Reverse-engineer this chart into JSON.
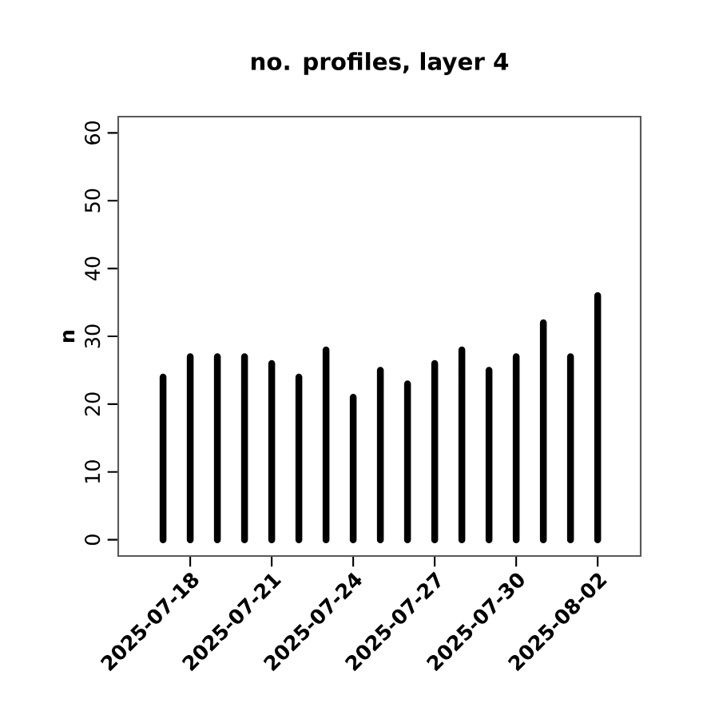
{
  "chart_data": {
    "type": "bar",
    "title": "no. profiles, layer 4",
    "ylabel": "n",
    "x": [
      "2025-07-17",
      "2025-07-18",
      "2025-07-19",
      "2025-07-20",
      "2025-07-21",
      "2025-07-22",
      "2025-07-23",
      "2025-07-24",
      "2025-07-25",
      "2025-07-26",
      "2025-07-27",
      "2025-07-28",
      "2025-07-29",
      "2025-07-30",
      "2025-07-31",
      "2025-08-01",
      "2025-08-02"
    ],
    "values": [
      24,
      27,
      27,
      27,
      26,
      24,
      28,
      21,
      25,
      23,
      26,
      28,
      25,
      27,
      32,
      27,
      36
    ],
    "color": "#000000",
    "xlim": [
      "2025-07-15T08:24",
      "2025-08-03T14:00"
    ],
    "xticks": [
      "2025-07-18",
      "2025-07-21",
      "2025-07-24",
      "2025-07-27",
      "2025-07-30",
      "2025-08-02"
    ],
    "ylim": [
      -2.4,
      62.4
    ],
    "yticks": [
      0,
      10,
      20,
      30,
      40,
      50,
      60
    ],
    "grid": false
  }
}
